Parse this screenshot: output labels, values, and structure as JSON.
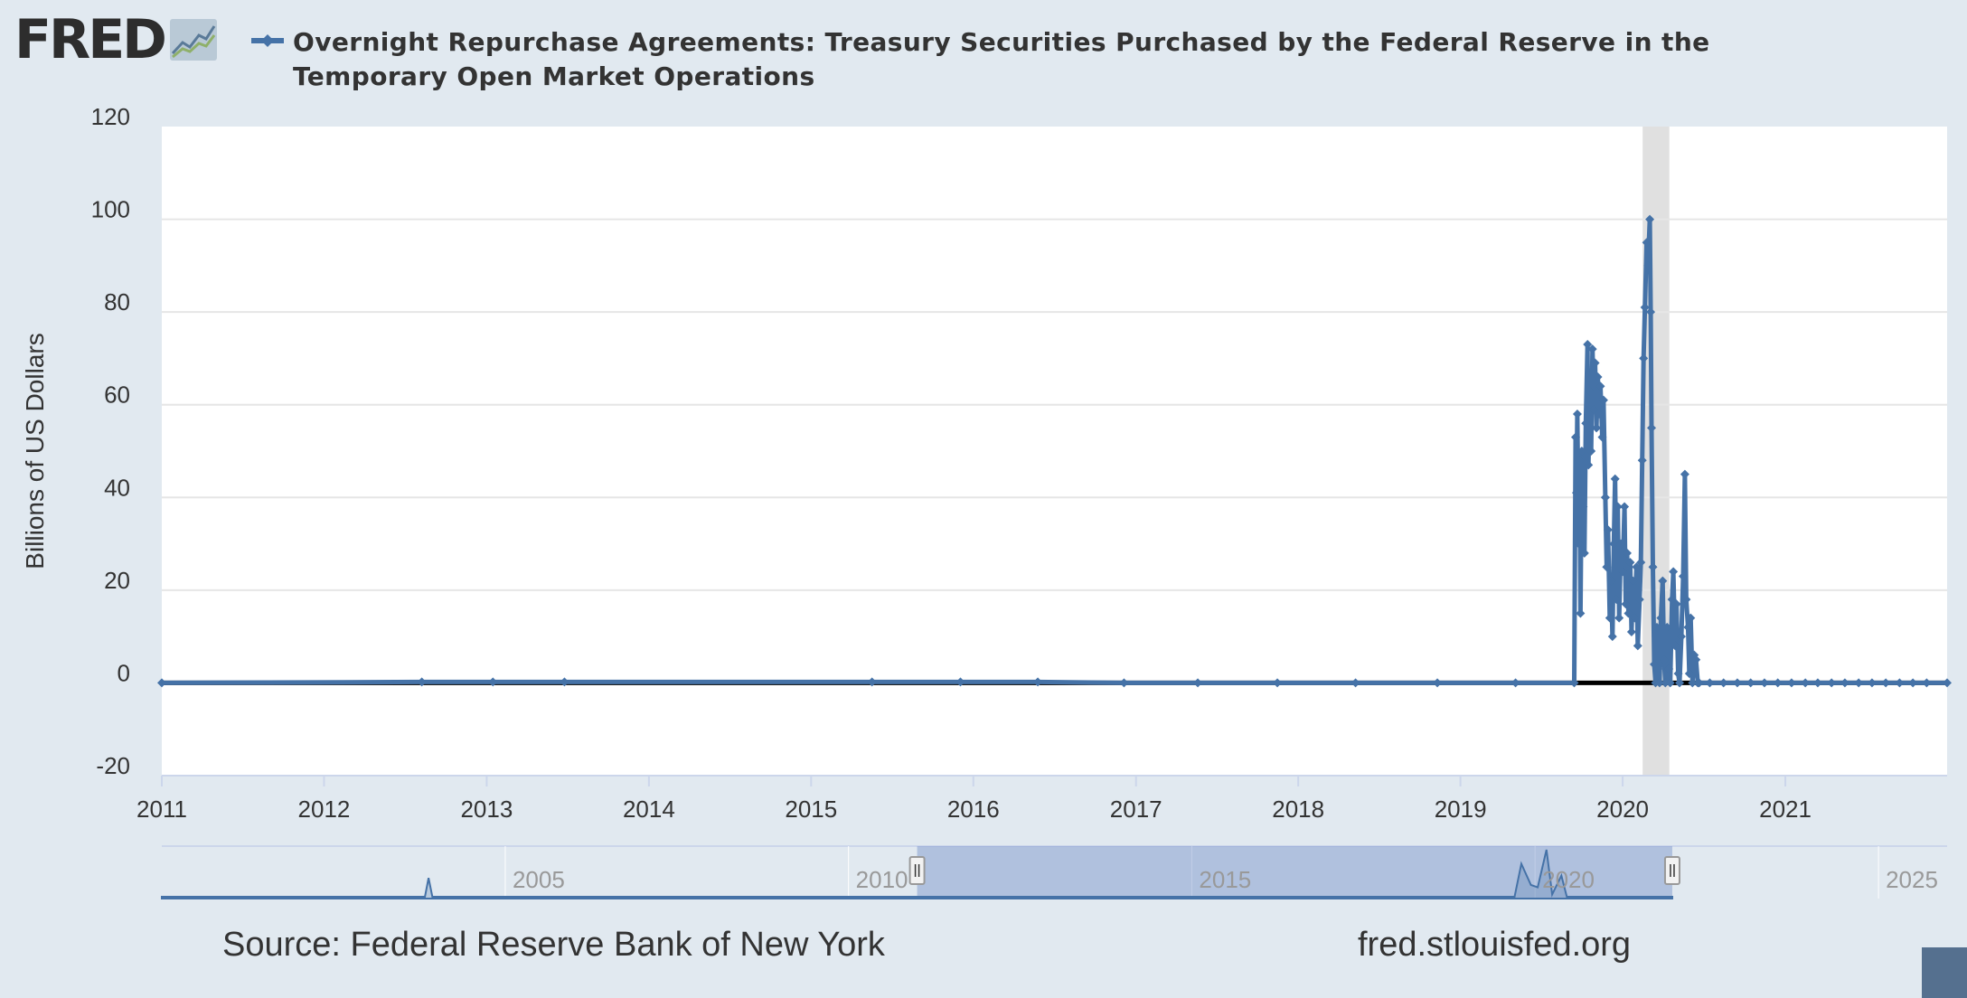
{
  "logo": {
    "text": "FRED",
    "registered": "®",
    "icon": "fred-chart-icon"
  },
  "legend": {
    "label": "Overnight Repurchase Agreements: Treasury Securities Purchased by the Federal Reserve in the Temporary Open Market Operations"
  },
  "footer": {
    "source": "Source: Federal Reserve Bank of New York",
    "url": "fred.stlouisfed.org"
  },
  "colors": {
    "series": "#4572a7",
    "zero_line": "#000000",
    "recession": "#e0e0e0",
    "background": "#e1e9f0",
    "plot": "#ffffff"
  },
  "chart_data": {
    "type": "line",
    "title": "Overnight Repurchase Agreements: Treasury Securities Purchased by the Federal Reserve in the Temporary Open Market Operations",
    "ylabel": "Billions of US Dollars",
    "xlabel": "",
    "xlim": [
      "2011-01-01",
      "2021-12-31"
    ],
    "ylim": [
      -20,
      120
    ],
    "yticks": [
      -20,
      0,
      20,
      40,
      60,
      80,
      100,
      120
    ],
    "xticks": [
      "2011",
      "2012",
      "2013",
      "2014",
      "2015",
      "2016",
      "2017",
      "2018",
      "2019",
      "2020",
      "2021"
    ],
    "grid": true,
    "legend_position": "top",
    "recession_bands": [
      [
        "2020-02-15",
        "2020-04-15"
      ]
    ],
    "series": [
      {
        "name": "Overnight Repurchase Agreements: Treasury Securities Purchased by the Federal Reserve in the Temporary Open Market Operations",
        "points": [
          [
            "2011-01-01",
            0
          ],
          [
            "2012-08-08",
            0.2
          ],
          [
            "2013-01-15",
            0.2
          ],
          [
            "2013-06-25",
            0.2
          ],
          [
            "2015-05-18",
            0.2
          ],
          [
            "2015-12-03",
            0.2
          ],
          [
            "2016-05-25",
            0.2
          ],
          [
            "2016-12-05",
            0
          ],
          [
            "2017-05-20",
            0
          ],
          [
            "2017-11-15",
            0
          ],
          [
            "2018-05-10",
            0
          ],
          [
            "2018-11-10",
            0
          ],
          [
            "2019-05-05",
            0
          ],
          [
            "2019-09-14",
            0
          ],
          [
            "2019-09-17",
            53
          ],
          [
            "2019-09-19",
            41
          ],
          [
            "2019-09-21",
            58
          ],
          [
            "2019-09-24",
            30
          ],
          [
            "2019-09-26",
            48
          ],
          [
            "2019-09-28",
            15
          ],
          [
            "2019-10-01",
            50
          ],
          [
            "2019-10-04",
            38
          ],
          [
            "2019-10-07",
            28
          ],
          [
            "2019-10-10",
            56
          ],
          [
            "2019-10-14",
            73
          ],
          [
            "2019-10-16",
            47
          ],
          [
            "2019-10-19",
            63
          ],
          [
            "2019-10-22",
            50
          ],
          [
            "2019-10-25",
            72
          ],
          [
            "2019-10-28",
            59
          ],
          [
            "2019-10-31",
            69
          ],
          [
            "2019-11-03",
            55
          ],
          [
            "2019-11-06",
            66
          ],
          [
            "2019-11-09",
            58
          ],
          [
            "2019-11-12",
            64
          ],
          [
            "2019-11-16",
            53
          ],
          [
            "2019-11-19",
            61
          ],
          [
            "2019-11-23",
            40
          ],
          [
            "2019-11-26",
            25
          ],
          [
            "2019-11-29",
            33
          ],
          [
            "2019-12-03",
            14
          ],
          [
            "2019-12-06",
            22
          ],
          [
            "2019-12-09",
            10
          ],
          [
            "2019-12-12",
            30
          ],
          [
            "2019-12-15",
            44
          ],
          [
            "2019-12-18",
            18
          ],
          [
            "2019-12-21",
            38
          ],
          [
            "2019-12-24",
            14
          ],
          [
            "2019-12-28",
            30
          ],
          [
            "2020-01-01",
            24
          ],
          [
            "2020-01-05",
            38
          ],
          [
            "2020-01-08",
            17
          ],
          [
            "2020-01-11",
            28
          ],
          [
            "2020-01-14",
            15
          ],
          [
            "2020-01-18",
            26
          ],
          [
            "2020-01-21",
            11
          ],
          [
            "2020-01-24",
            22
          ],
          [
            "2020-01-28",
            14
          ],
          [
            "2020-02-01",
            25
          ],
          [
            "2020-02-04",
            8
          ],
          [
            "2020-02-08",
            18
          ],
          [
            "2020-02-11",
            26
          ],
          [
            "2020-02-14",
            48
          ],
          [
            "2020-02-17",
            70
          ],
          [
            "2020-02-20",
            81
          ],
          [
            "2020-02-24",
            95
          ],
          [
            "2020-02-27",
            90
          ],
          [
            "2020-03-02",
            100
          ],
          [
            "2020-03-04",
            80
          ],
          [
            "2020-03-06",
            55
          ],
          [
            "2020-03-09",
            25
          ],
          [
            "2020-03-12",
            4
          ],
          [
            "2020-03-15",
            0
          ],
          [
            "2020-03-18",
            12
          ],
          [
            "2020-03-21",
            3
          ],
          [
            "2020-03-24",
            0
          ],
          [
            "2020-03-27",
            14
          ],
          [
            "2020-03-31",
            22
          ],
          [
            "2020-04-03",
            5
          ],
          [
            "2020-04-06",
            0
          ],
          [
            "2020-04-10",
            12
          ],
          [
            "2020-04-14",
            3
          ],
          [
            "2020-04-17",
            0
          ],
          [
            "2020-04-21",
            18
          ],
          [
            "2020-04-24",
            24
          ],
          [
            "2020-04-28",
            8
          ],
          [
            "2020-05-01",
            17
          ],
          [
            "2020-05-05",
            2
          ],
          [
            "2020-05-08",
            0
          ],
          [
            "2020-05-12",
            10
          ],
          [
            "2020-05-16",
            23
          ],
          [
            "2020-05-20",
            45
          ],
          [
            "2020-05-23",
            18
          ],
          [
            "2020-05-27",
            12
          ],
          [
            "2020-05-30",
            2
          ],
          [
            "2020-06-02",
            14
          ],
          [
            "2020-06-06",
            0
          ],
          [
            "2020-06-10",
            6
          ],
          [
            "2020-06-14",
            5
          ],
          [
            "2020-06-18",
            0
          ],
          [
            "2020-06-21",
            0
          ],
          [
            "2020-07-15",
            0
          ],
          [
            "2020-08-15",
            0
          ],
          [
            "2020-09-15",
            0
          ],
          [
            "2020-10-15",
            0
          ],
          [
            "2020-11-15",
            0
          ],
          [
            "2020-12-15",
            0
          ],
          [
            "2021-01-15",
            0
          ],
          [
            "2021-02-15",
            0
          ],
          [
            "2021-03-15",
            0
          ],
          [
            "2021-04-15",
            0
          ],
          [
            "2021-05-15",
            0
          ],
          [
            "2021-06-15",
            0
          ],
          [
            "2021-07-15",
            0
          ],
          [
            "2021-08-15",
            0
          ],
          [
            "2021-09-15",
            0
          ],
          [
            "2021-10-15",
            0
          ],
          [
            "2021-11-15",
            0
          ],
          [
            "2021-12-31",
            0
          ]
        ]
      }
    ]
  },
  "navigator": {
    "labels": [
      "2005",
      "2010",
      "2015",
      "2020",
      "2025"
    ],
    "range": [
      "2000-01-01",
      "2026-01-01"
    ],
    "selection": [
      "2011-01-01",
      "2021-12-31"
    ],
    "preview": [
      [
        "2000-01-01",
        0
      ],
      [
        "2001-06-01",
        0
      ],
      [
        "2003-01-01",
        0
      ],
      [
        "2003-11-01",
        0
      ],
      [
        "2003-11-20",
        40
      ],
      [
        "2003-12-10",
        0
      ],
      [
        "2005-06-01",
        0
      ],
      [
        "2007-06-01",
        0
      ],
      [
        "2009-04-01",
        0
      ],
      [
        "2019-09-14",
        0
      ],
      [
        "2019-10-20",
        70
      ],
      [
        "2019-12-10",
        25
      ],
      [
        "2020-01-15",
        20
      ],
      [
        "2020-03-02",
        100
      ],
      [
        "2020-04-01",
        5
      ],
      [
        "2020-05-20",
        45
      ],
      [
        "2020-06-18",
        0
      ],
      [
        "2021-12-31",
        0
      ]
    ]
  }
}
